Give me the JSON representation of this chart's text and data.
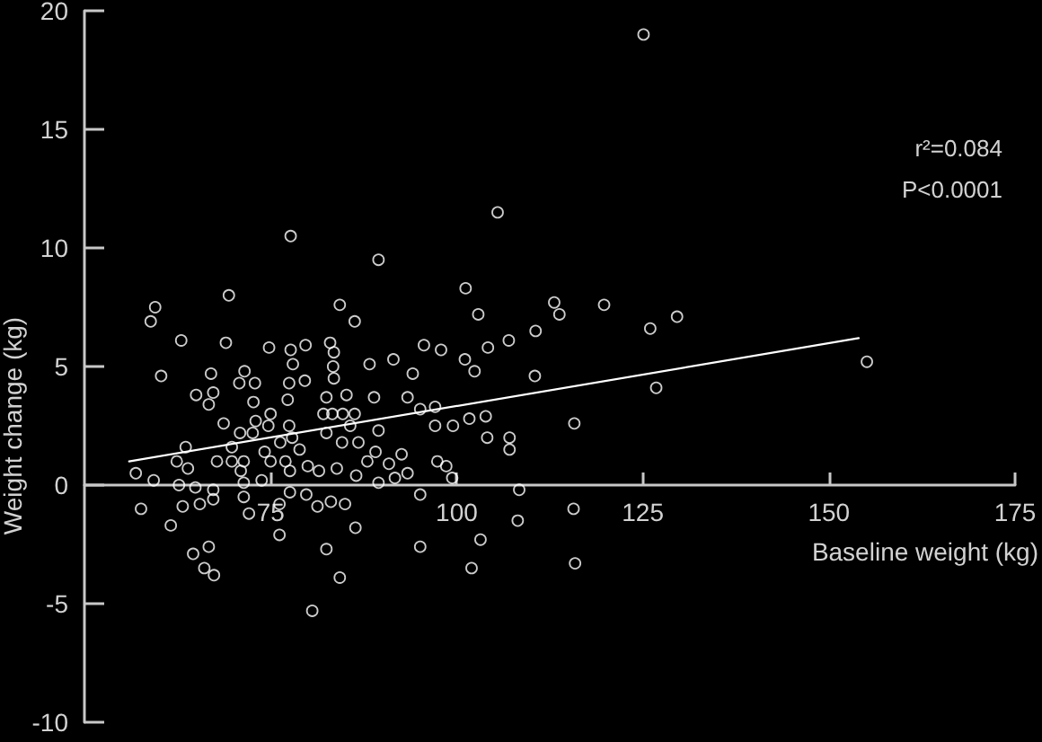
{
  "chart_data": {
    "type": "scatter",
    "xlabel": "Baseline weight (kg)",
    "ylabel": "Weight change (kg)",
    "annotations": [
      "r²=0.084",
      "P<0.0001"
    ],
    "xlim": [
      50,
      175
    ],
    "xticks": [
      75,
      100,
      125,
      150,
      175
    ],
    "ylim": [
      -10,
      20
    ],
    "yticks": [
      -10,
      -5,
      0,
      5,
      10,
      15,
      20
    ],
    "marker": "circle",
    "series": [
      {
        "type": "scatter",
        "color": "#ffffff",
        "x": [
          77.7,
          69.4,
          59.5,
          58.9,
          84.3,
          86.3,
          63.0,
          69.0,
          74.8,
          77.7,
          79.7,
          83.0,
          83.5,
          60.3,
          67.0,
          71.5,
          78.0,
          83.4,
          70.8,
          72.9,
          77.5,
          79.6,
          83.5,
          65.0,
          67.3,
          66.7,
          72.7,
          77.3,
          82.5,
          85.2,
          75.0,
          73.0,
          68.7,
          70.9,
          72.6,
          74.7,
          77.5,
          82.1,
          83.3,
          84.7,
          86.3,
          85.7,
          82.5,
          84.6,
          86.8,
          77.9,
          76.3,
          78.9,
          74.2,
          63.6,
          69.8,
          62.4,
          63.9,
          67.8,
          69.8,
          71.4,
          71.0,
          75.0,
          77.0,
          77.6,
          80.0,
          81.5,
          83.9,
          86.5,
          56.9,
          59.3,
          62.7,
          64.9,
          67.3,
          71.4,
          73.8,
          57.6,
          63.2,
          65.5,
          67.3,
          71.4,
          72.1,
          76.2,
          77.6,
          79.8,
          81.3,
          83.1,
          85.0,
          61.6,
          76.2,
          86.4,
          66.7,
          64.6,
          82.5,
          66.1,
          67.4,
          84.3,
          80.6,
          105.5,
          89.5,
          101.2,
          113.1,
          113.8,
          119.8,
          102.9,
          110.6,
          107.0,
          95.6,
          97.9,
          104.2,
          101.1,
          102.4,
          91.5,
          88.3,
          94.1,
          110.5,
          88.9,
          93.4,
          95.1,
          97.1,
          101.7,
          103.9,
          115.8,
          97.1,
          99.5,
          89.5,
          104.1,
          107.1,
          107.1,
          89.1,
          92.6,
          88.0,
          90.9,
          97.4,
          98.6,
          93.4,
          89.5,
          91.7,
          99.4,
          95.1,
          108.4,
          108.2,
          115.7,
          103.2,
          95.1,
          102.0,
          115.9,
          125.1,
          126.0,
          129.6,
          155.1,
          126.8
        ],
        "values": [
          10.5,
          8.0,
          7.5,
          6.9,
          7.6,
          6.9,
          6.1,
          6.0,
          5.8,
          5.7,
          5.9,
          6.0,
          5.6,
          4.6,
          4.7,
          4.8,
          5.1,
          5.0,
          4.3,
          4.3,
          4.3,
          4.4,
          4.5,
          3.8,
          3.9,
          3.4,
          3.5,
          3.6,
          3.7,
          3.8,
          3.0,
          2.7,
          2.6,
          2.2,
          2.2,
          2.5,
          2.5,
          3.0,
          3.0,
          3.0,
          3.0,
          2.5,
          2.2,
          1.8,
          1.8,
          2.0,
          1.8,
          1.5,
          1.4,
          1.6,
          1.6,
          1.0,
          0.7,
          1.0,
          1.0,
          1.0,
          0.6,
          1.0,
          1.0,
          0.6,
          0.8,
          0.6,
          0.7,
          0.4,
          0.5,
          0.2,
          0,
          -0.1,
          -0.2,
          0.1,
          0.2,
          -1.0,
          -0.9,
          -0.8,
          -0.6,
          -0.5,
          -1.2,
          -0.8,
          -0.3,
          -0.4,
          -0.9,
          -0.7,
          -0.8,
          -1.7,
          -2.1,
          -1.8,
          -2.6,
          -2.9,
          -2.7,
          -3.5,
          -3.8,
          -3.9,
          -5.3,
          11.5,
          9.5,
          8.3,
          7.7,
          7.2,
          7.6,
          7.2,
          6.5,
          6.1,
          5.9,
          5.7,
          5.8,
          5.3,
          4.8,
          5.3,
          5.1,
          4.7,
          4.6,
          3.7,
          3.7,
          3.2,
          3.3,
          2.8,
          2.9,
          2.6,
          2.5,
          2.5,
          2.3,
          2.0,
          2.0,
          1.5,
          1.4,
          1.3,
          1.0,
          0.9,
          1.0,
          0.8,
          0.5,
          0.1,
          0.3,
          0.3,
          -0.4,
          -0.2,
          -1.5,
          -1.0,
          -2.3,
          -2.6,
          -3.5,
          -3.3,
          19.0,
          6.6,
          7.1,
          5.2,
          4.1
        ]
      },
      {
        "type": "line",
        "color": "#ffffff",
        "marker": "none",
        "x": [
          56,
          154
        ],
        "values": [
          1.0,
          6.2
        ]
      }
    ]
  }
}
